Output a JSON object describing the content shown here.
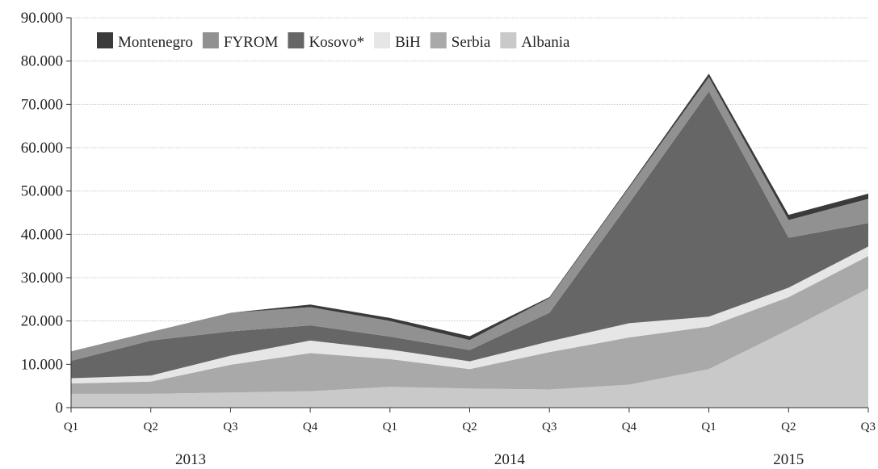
{
  "chart_data": {
    "type": "area",
    "stacked": true,
    "x_quarters": [
      "Q1",
      "Q2",
      "Q3",
      "Q4",
      "Q1",
      "Q2",
      "Q3",
      "Q4",
      "Q1",
      "Q2",
      "Q3"
    ],
    "years": [
      {
        "label": "2013",
        "start_index": 0,
        "end_index": 3
      },
      {
        "label": "2014",
        "start_index": 4,
        "end_index": 7
      },
      {
        "label": "2015",
        "start_index": 8,
        "end_index": 10
      }
    ],
    "y_ticks": [
      "0",
      "10.000",
      "20.000",
      "30.000",
      "40.000",
      "50.000",
      "60.000",
      "70.000",
      "80.000",
      "90.000"
    ],
    "ylim": [
      0,
      90000
    ],
    "grid": true,
    "legend_position": "top-left",
    "series": [
      {
        "name": "Albania",
        "color": "#c9c9c9",
        "values": [
          3200,
          3200,
          3500,
          3800,
          4800,
          4400,
          4200,
          5300,
          8900,
          18000,
          27500
        ]
      },
      {
        "name": "Serbia",
        "color": "#a9a9a9",
        "values": [
          2400,
          2800,
          6400,
          8800,
          6400,
          4500,
          8600,
          10900,
          9800,
          7500,
          7500
        ]
      },
      {
        "name": "BiH",
        "color": "#e6e6e6",
        "values": [
          1200,
          1400,
          2100,
          2900,
          2200,
          1800,
          2500,
          3300,
          2300,
          2200,
          2200
        ]
      },
      {
        "name": "Kosovo*",
        "color": "#666666",
        "values": [
          4000,
          8100,
          5600,
          3500,
          3000,
          2600,
          6600,
          27700,
          52000,
          11500,
          5400
        ]
      },
      {
        "name": "FYROM",
        "color": "#919191",
        "values": [
          2200,
          2000,
          4300,
          4200,
          3600,
          2300,
          3400,
          3600,
          3300,
          4100,
          5600
        ]
      },
      {
        "name": "Montenegro",
        "color": "#3a3a3a",
        "values": [
          0,
          0,
          0,
          600,
          700,
          900,
          200,
          300,
          800,
          1200,
          1200
        ]
      }
    ],
    "legend_order": [
      "Montenegro",
      "FYROM",
      "Kosovo*",
      "BiH",
      "Serbia",
      "Albania"
    ]
  }
}
